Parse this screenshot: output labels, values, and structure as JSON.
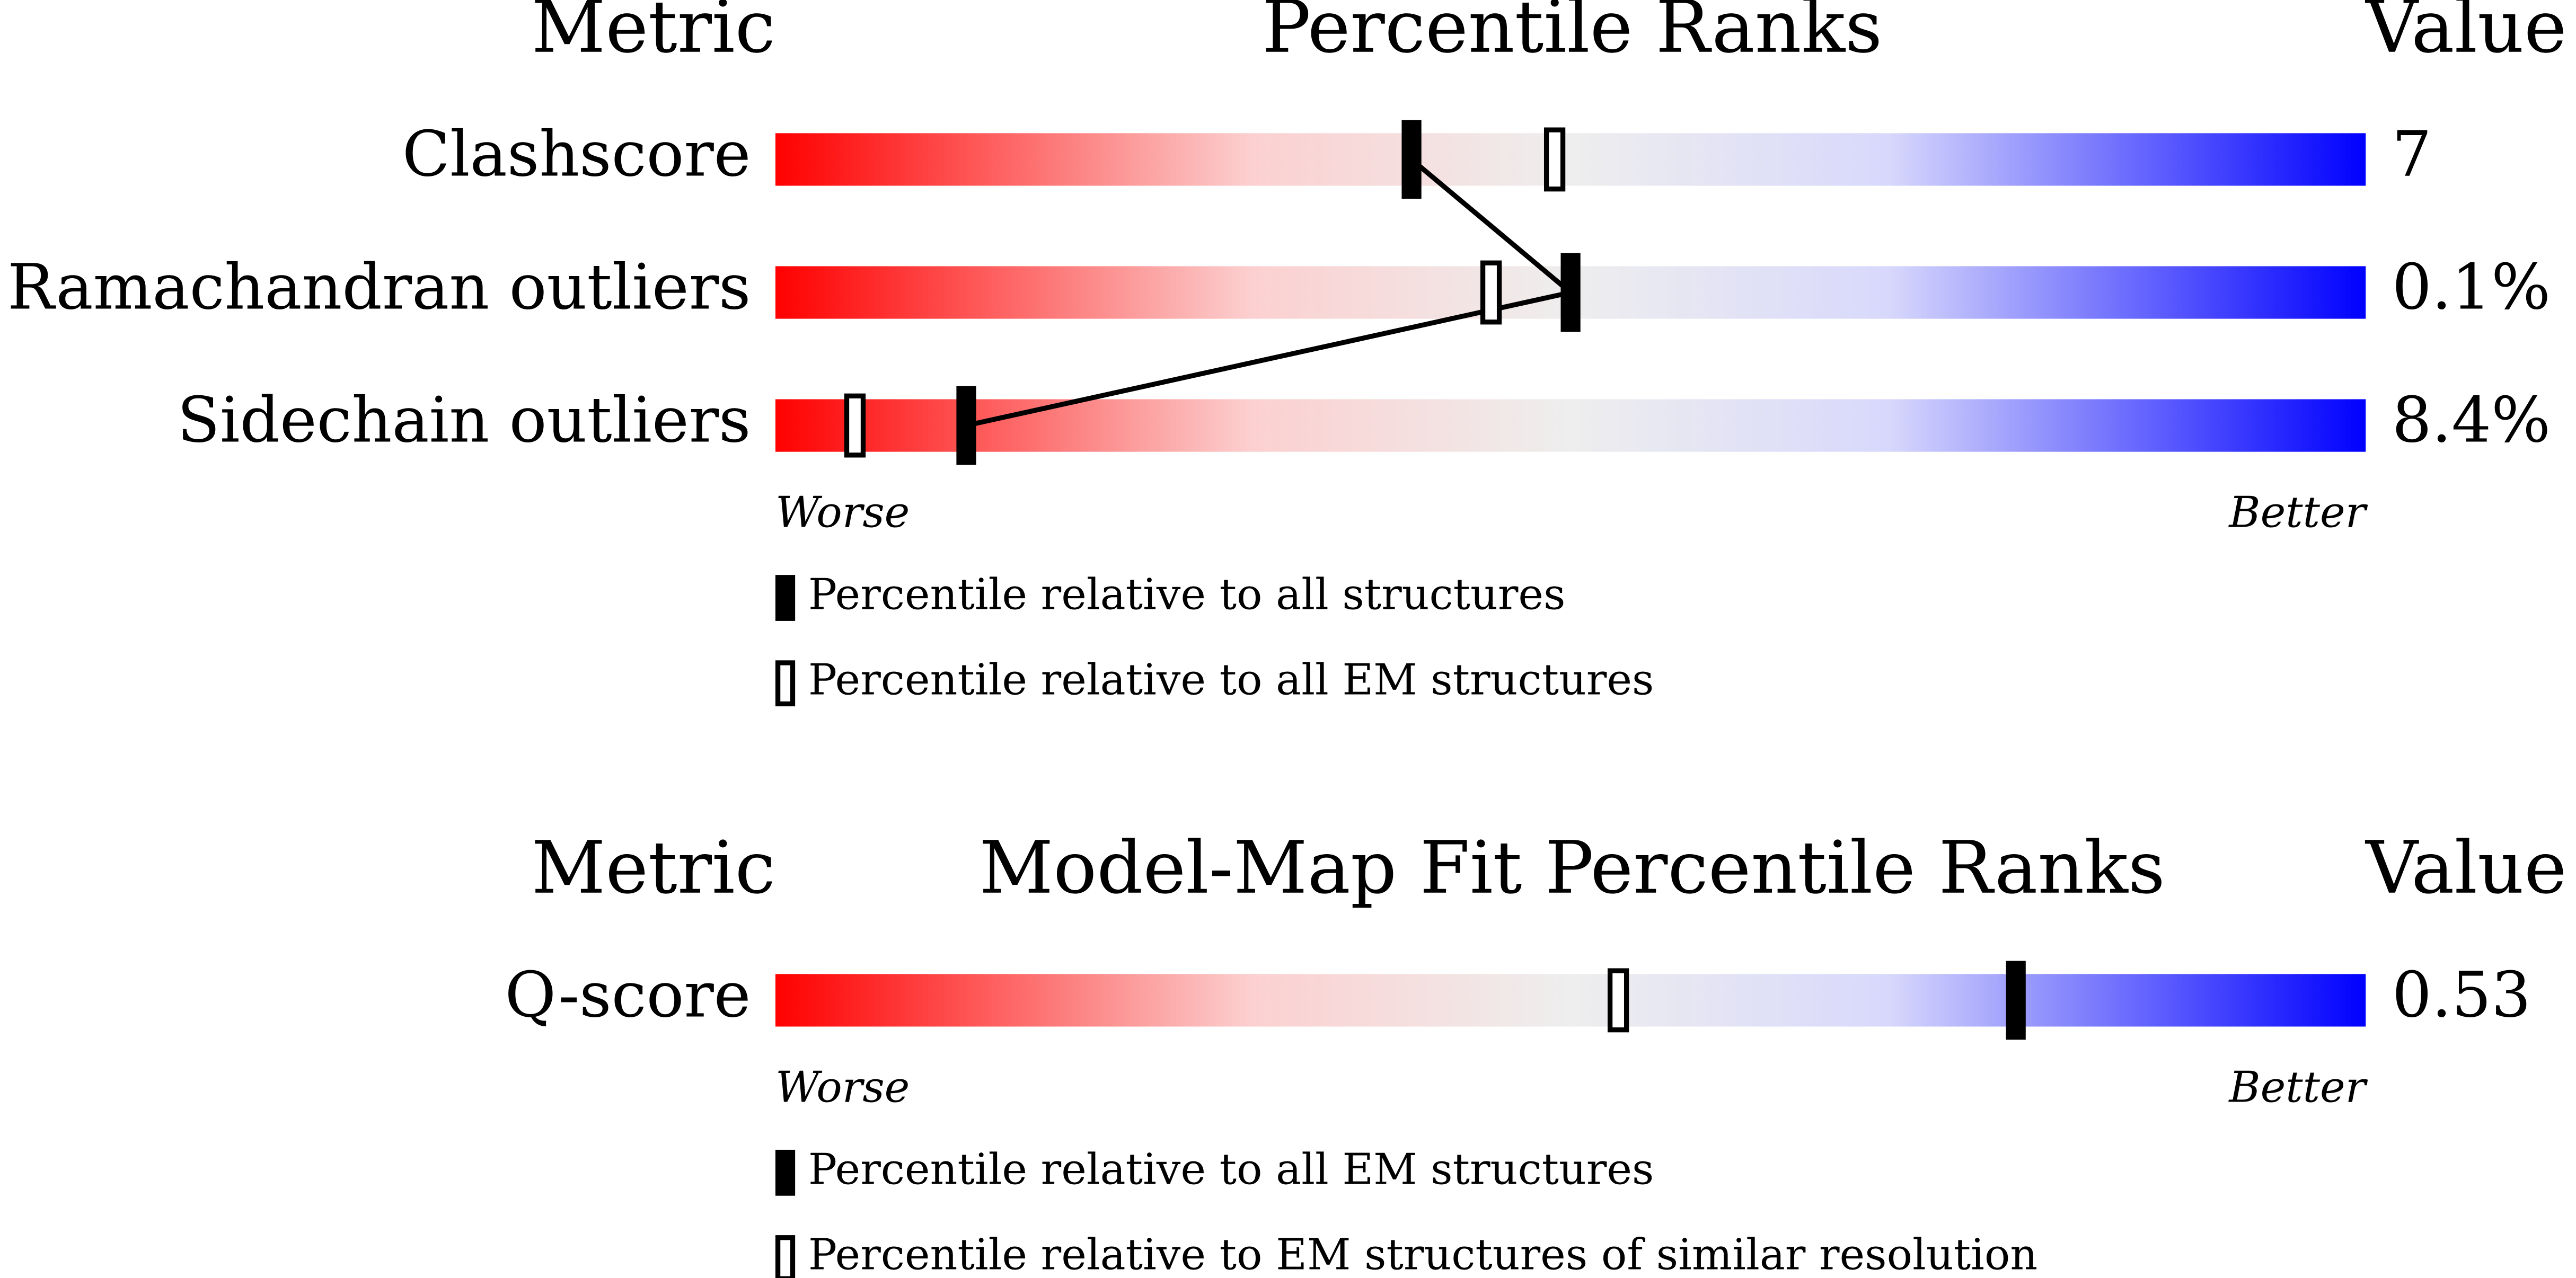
{
  "panels": [
    {
      "header": {
        "metric": "Metric",
        "title": "Percentile Ranks",
        "value": "Value"
      },
      "xlim": [
        0,
        100
      ],
      "rows": [
        {
          "metric": "Clashscore",
          "value": "7",
          "percentile_filled": 40,
          "percentile_open": 49
        },
        {
          "metric": "Ramachandran outliers",
          "value": "0.1%",
          "percentile_filled": 50,
          "percentile_open": 45
        },
        {
          "metric": "Sidechain outliers",
          "value": "8.4%",
          "percentile_filled": 12,
          "percentile_open": 5
        }
      ],
      "worse": "Worse",
      "better": "Better",
      "legend": {
        "filled": "Percentile relative to all structures",
        "open": "Percentile relative to all EM structures"
      }
    },
    {
      "header": {
        "metric": "Metric",
        "title": "Model-Map Fit Percentile Ranks",
        "value": "Value"
      },
      "xlim": [
        0,
        100
      ],
      "rows": [
        {
          "metric": "Q-score",
          "value": "0.53",
          "percentile_filled": 78,
          "percentile_open": 53
        }
      ],
      "worse": "Worse",
      "better": "Better",
      "legend": {
        "filled": "Percentile relative to all EM structures",
        "open": "Percentile relative to EM structures of similar resolution"
      }
    }
  ]
}
